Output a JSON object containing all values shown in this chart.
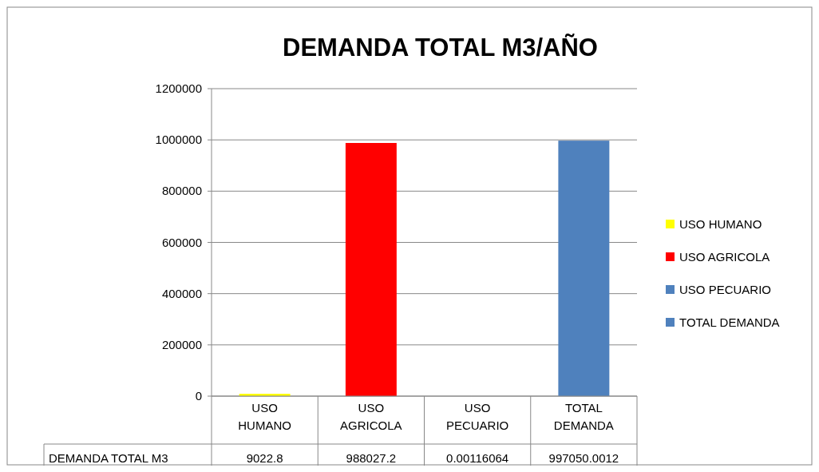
{
  "chart_data": {
    "type": "bar",
    "title": "DEMANDA TOTAL M3/AÑO",
    "categories": [
      "USO HUMANO",
      "USO AGRICOLA",
      "USO PECUARIO",
      "TOTAL DEMANDA"
    ],
    "annotations": [
      "DEMANDA TOTAL M3"
    ],
    "series": [
      {
        "name": "USO HUMANO",
        "color": "#ffff00",
        "values": [
          9022.8,
          null,
          null,
          null
        ]
      },
      {
        "name": "USO AGRICOLA",
        "color": "#ff0000",
        "values": [
          null,
          988027.2,
          null,
          null
        ]
      },
      {
        "name": "USO PECUARIO",
        "color": "#4f81bd",
        "values": [
          null,
          null,
          0.00116064,
          null
        ]
      },
      {
        "name": "TOTAL DEMANDA",
        "color": "#4f81bd",
        "values": [
          null,
          null,
          null,
          997050.0012
        ]
      }
    ],
    "value_labels": [
      "9022.8",
      "988027.2",
      "0.00116064",
      "997050.0012"
    ],
    "ylim": [
      0,
      1200000
    ],
    "yticks": [
      0,
      200000,
      400000,
      600000,
      800000,
      1000000,
      1200000
    ],
    "grid": "y",
    "legend": "right"
  }
}
